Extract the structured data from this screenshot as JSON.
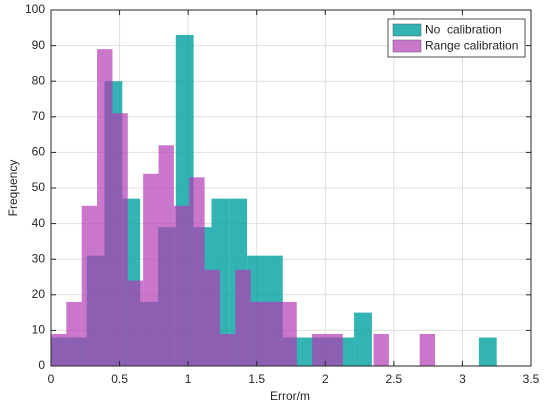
{
  "chart_data": {
    "type": "histogram",
    "xlabel": "Error/m",
    "ylabel": "Frequency",
    "xlim": [
      0,
      3.5
    ],
    "xticks": [
      0,
      0.5,
      1,
      1.5,
      2,
      2.5,
      3,
      3.5
    ],
    "ylim": [
      0,
      100
    ],
    "yticks": [
      0,
      10,
      20,
      30,
      40,
      50,
      60,
      70,
      80,
      90,
      100
    ],
    "grid": true,
    "legend": "upper right",
    "series": [
      {
        "name": "No  calibration",
        "color": "#00a0a0cc",
        "bins": [
          0,
          0.13,
          0.26,
          0.39,
          0.52,
          0.65,
          0.78,
          0.91,
          1.04,
          1.17,
          1.3,
          1.43,
          1.56,
          1.69,
          1.82,
          1.95,
          2.08,
          2.21,
          2.34,
          2.47,
          2.6,
          2.73,
          2.86,
          2.99,
          3.12,
          3.25
        ],
        "values": [
          8,
          8,
          31,
          80,
          47,
          18,
          39,
          93,
          39,
          47,
          47,
          31,
          31,
          8,
          8,
          8,
          8,
          15,
          0,
          0,
          0,
          0,
          0,
          0,
          8
        ]
      },
      {
        "name": "Range calibration",
        "color": "#b43cb4b3",
        "bins": [
          0,
          0.112,
          0.224,
          0.336,
          0.448,
          0.56,
          0.672,
          0.784,
          0.896,
          1.008,
          1.12,
          1.232,
          1.344,
          1.456,
          1.568,
          1.68,
          1.792,
          1.904,
          2.016,
          2.128,
          2.24,
          2.352,
          2.464,
          2.576,
          2.688,
          2.8
        ],
        "values": [
          9,
          18,
          45,
          89,
          71,
          24,
          54,
          62,
          45,
          53,
          27,
          9,
          27,
          18,
          18,
          18,
          0,
          9,
          9,
          0,
          0,
          9,
          0,
          0,
          9
        ]
      }
    ]
  }
}
